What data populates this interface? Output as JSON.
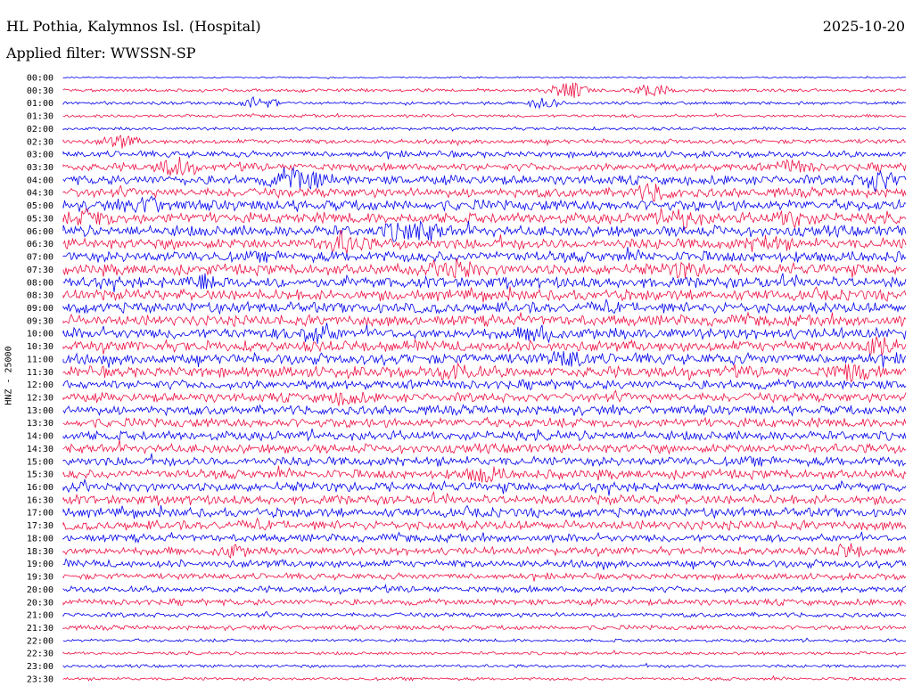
{
  "header": {
    "station": "HL Pothia, Kalymnos Isl. (Hospital)",
    "date": "2025-10-20",
    "filter": "Applied filter: WWSSN-SP"
  },
  "chart_data": {
    "type": "line",
    "ylabel": "HNZ - 25000",
    "trace_labels": [
      "00:00",
      "00:30",
      "01:00",
      "01:30",
      "02:00",
      "02:30",
      "03:00",
      "03:30",
      "04:00",
      "04:30",
      "05:00",
      "05:30",
      "06:00",
      "06:30",
      "07:00",
      "07:30",
      "08:00",
      "08:30",
      "09:00",
      "09:30",
      "10:00",
      "10:30",
      "11:00",
      "11:30",
      "12:00",
      "12:30",
      "13:00",
      "13:30",
      "14:00",
      "14:30",
      "15:00",
      "15:30",
      "16:00",
      "16:30",
      "17:00",
      "17:30",
      "18:00",
      "18:30",
      "19:00",
      "19:30",
      "20:00",
      "20:30",
      "21:00",
      "21:30",
      "22:00",
      "22:30",
      "23:00",
      "23:30"
    ],
    "colors": {
      "even": "#0000ee",
      "odd": "#ee1144"
    },
    "noise_level": [
      1,
      2,
      2,
      2,
      2,
      3,
      4,
      5,
      6,
      6,
      7,
      7,
      7,
      7,
      7,
      7,
      7,
      7,
      7,
      7,
      7,
      7,
      7,
      7,
      6,
      6,
      6,
      6,
      6,
      6,
      6,
      6,
      6,
      6,
      6,
      6,
      5,
      5,
      5,
      4,
      4,
      4,
      3,
      3,
      2,
      2,
      2,
      2
    ],
    "events": [
      {
        "row": 1,
        "minute": 18,
        "amp": 9
      },
      {
        "row": 1,
        "minute": 21,
        "amp": 7
      },
      {
        "row": 2,
        "minute": 7,
        "amp": 6
      },
      {
        "row": 2,
        "minute": 17,
        "amp": 5
      },
      {
        "row": 5,
        "minute": 2,
        "amp": 6
      },
      {
        "row": 7,
        "minute": 4,
        "amp": 8
      },
      {
        "row": 7,
        "minute": 26,
        "amp": 6
      },
      {
        "row": 8,
        "minute": 8,
        "amp": 9
      },
      {
        "row": 8,
        "minute": 9,
        "amp": 6
      },
      {
        "row": 8,
        "minute": 29,
        "amp": 9
      },
      {
        "row": 9,
        "minute": 21,
        "amp": 7
      },
      {
        "row": 10,
        "minute": 3,
        "amp": 7
      },
      {
        "row": 11,
        "minute": 1,
        "amp": 6
      },
      {
        "row": 11,
        "minute": 22,
        "amp": 9
      },
      {
        "row": 11,
        "minute": 26,
        "amp": 7
      },
      {
        "row": 12,
        "minute": 12,
        "amp": 7
      },
      {
        "row": 12,
        "minute": 13,
        "amp": 6
      },
      {
        "row": 13,
        "minute": 10,
        "amp": 10
      },
      {
        "row": 13,
        "minute": 25,
        "amp": 6
      },
      {
        "row": 15,
        "minute": 14,
        "amp": 8
      },
      {
        "row": 15,
        "minute": 22,
        "amp": 5
      },
      {
        "row": 16,
        "minute": 5,
        "amp": 6
      },
      {
        "row": 20,
        "minute": 9,
        "amp": 9
      },
      {
        "row": 20,
        "minute": 17,
        "amp": 6
      },
      {
        "row": 21,
        "minute": 29,
        "amp": 8
      },
      {
        "row": 22,
        "minute": 18,
        "amp": 7
      },
      {
        "row": 23,
        "minute": 14,
        "amp": 7
      },
      {
        "row": 23,
        "minute": 28,
        "amp": 7
      },
      {
        "row": 25,
        "minute": 10,
        "amp": 5
      },
      {
        "row": 31,
        "minute": 15,
        "amp": 7
      },
      {
        "row": 37,
        "minute": 6,
        "amp": 5
      },
      {
        "row": 37,
        "minute": 28,
        "amp": 5
      }
    ]
  }
}
